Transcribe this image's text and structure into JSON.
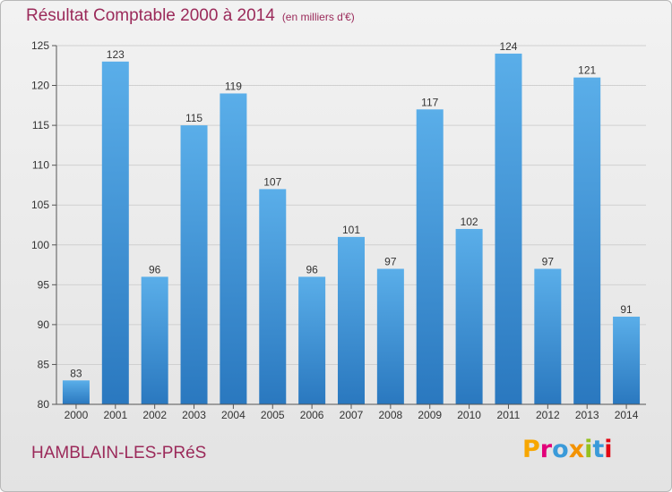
{
  "header": {
    "title": "Résultat Comptable 2000 à 2014",
    "subtitle": "(en milliers d'€)"
  },
  "footer": {
    "location": "HAMBLAIN-LES-PRéS",
    "brand": "Proxiti",
    "brand_letters": [
      {
        "char": "P",
        "color": "#f7a600"
      },
      {
        "char": "r",
        "color": "#e2007a"
      },
      {
        "char": "o",
        "color": "#3a9ad9"
      },
      {
        "char": "x",
        "color": "#f39200"
      },
      {
        "char": "i",
        "color": "#95c11f"
      },
      {
        "char": "t",
        "color": "#3a9ad9"
      },
      {
        "char": "i",
        "color": "#e30613"
      }
    ]
  },
  "chart_data": {
    "type": "bar",
    "title": "Résultat Comptable 2000 à 2014",
    "subtitle": "(en milliers d'€)",
    "categories": [
      "2000",
      "2001",
      "2002",
      "2003",
      "2004",
      "2005",
      "2006",
      "2007",
      "2008",
      "2009",
      "2010",
      "2011",
      "2012",
      "2013",
      "2014"
    ],
    "values": [
      83,
      123,
      96,
      115,
      119,
      107,
      96,
      101,
      97,
      117,
      102,
      124,
      97,
      121,
      91
    ],
    "ylim": [
      80,
      125
    ],
    "yticks": [
      80,
      85,
      90,
      95,
      100,
      105,
      110,
      115,
      120,
      125
    ],
    "grid": true,
    "bar_color": "#3a8fd6"
  }
}
